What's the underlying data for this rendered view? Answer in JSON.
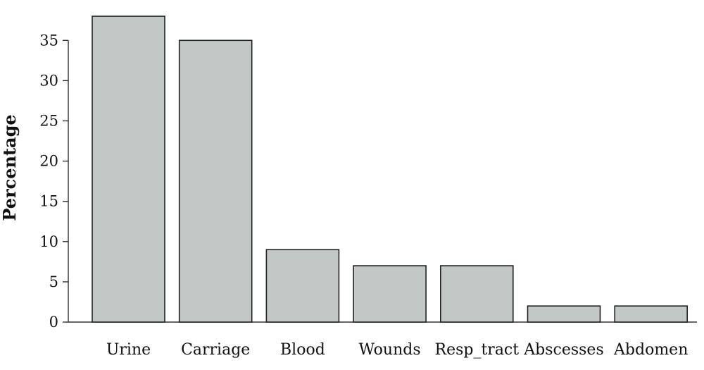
{
  "chart_data": {
    "type": "bar",
    "title": "",
    "xlabel": "",
    "ylabel": "Percentage",
    "categories": [
      "Urine",
      "Carriage",
      "Blood",
      "Wounds",
      "Resp_tract",
      "Abscesses",
      "Abdomen"
    ],
    "values": [
      38,
      35,
      9,
      7,
      7,
      2,
      2
    ],
    "ylim": [
      0,
      38
    ],
    "yticks": [
      0,
      5,
      10,
      15,
      20,
      25,
      30,
      35
    ],
    "grid": false,
    "legend": "none",
    "bar_color": "#c2c8c6",
    "bar_edge_color": "#222222"
  }
}
